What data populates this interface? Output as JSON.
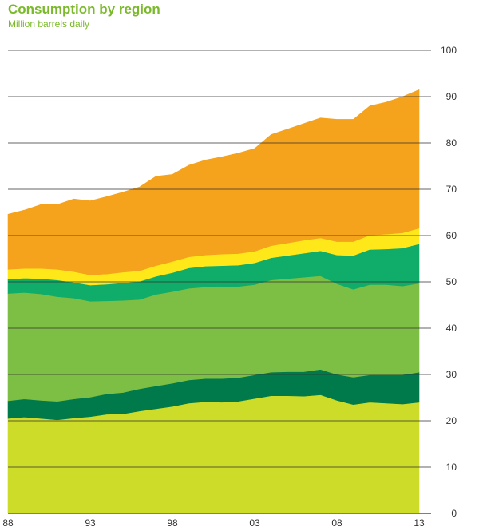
{
  "title": "Consumption by region",
  "subtitle": "Million barrels daily",
  "chart_data": {
    "type": "area",
    "stacked": true,
    "x": [
      1988,
      1989,
      1990,
      1991,
      1992,
      1993,
      1994,
      1995,
      1996,
      1997,
      1998,
      1999,
      2000,
      2001,
      2002,
      2003,
      2004,
      2005,
      2006,
      2007,
      2008,
      2009,
      2010,
      2011,
      2012,
      2013
    ],
    "xtick_labels": [
      "88",
      "93",
      "98",
      "03",
      "08",
      "13"
    ],
    "xtick_years": [
      1988,
      1993,
      1998,
      2003,
      2008,
      2013
    ],
    "ytick_labels": [
      "0",
      "10",
      "20",
      "30",
      "40",
      "50",
      "60",
      "70",
      "80",
      "90",
      "100"
    ],
    "ylim": [
      0,
      100
    ],
    "grid": "horizontal",
    "legend": "none",
    "series": [
      {
        "color": "#cddc28",
        "values": [
          20.5,
          20.8,
          20.5,
          20.2,
          20.6,
          20.9,
          21.4,
          21.5,
          22.1,
          22.6,
          23.1,
          23.8,
          24.1,
          24.0,
          24.2,
          24.8,
          25.4,
          25.4,
          25.3,
          25.6,
          24.4,
          23.5,
          24.0,
          23.8,
          23.6,
          24.0
        ]
      },
      {
        "color": "#007a4b",
        "values": [
          3.8,
          3.9,
          3.9,
          4.0,
          4.1,
          4.2,
          4.4,
          4.6,
          4.8,
          4.9,
          5.0,
          5.0,
          5.0,
          5.1,
          5.1,
          5.1,
          5.1,
          5.2,
          5.3,
          5.5,
          5.6,
          5.9,
          5.9,
          6.1,
          6.3,
          6.5
        ]
      },
      {
        "color": "#7dbf44",
        "values": [
          23.2,
          23.0,
          23.0,
          22.6,
          21.8,
          20.7,
          20.1,
          19.9,
          19.3,
          19.8,
          19.8,
          19.8,
          19.8,
          19.9,
          19.7,
          19.5,
          19.9,
          20.1,
          20.4,
          20.2,
          19.6,
          19.0,
          19.5,
          19.5,
          19.2,
          19.2
        ]
      },
      {
        "color": "#0fad69",
        "values": [
          3.1,
          3.1,
          3.3,
          3.6,
          3.4,
          3.5,
          3.6,
          3.8,
          3.9,
          3.9,
          4.1,
          4.4,
          4.5,
          4.5,
          4.6,
          4.7,
          4.8,
          5.0,
          5.2,
          5.4,
          6.2,
          7.3,
          7.6,
          7.7,
          8.2,
          8.5
        ]
      },
      {
        "color": "#ffe81a",
        "values": [
          2.1,
          2.1,
          2.2,
          2.3,
          2.3,
          2.2,
          2.2,
          2.3,
          2.3,
          2.3,
          2.4,
          2.4,
          2.4,
          2.5,
          2.5,
          2.5,
          2.6,
          2.7,
          2.8,
          2.8,
          2.9,
          3.0,
          3.1,
          3.2,
          3.3,
          3.4
        ]
      },
      {
        "color": "#f5a21c",
        "values": [
          11.9,
          12.6,
          13.8,
          14.0,
          15.7,
          16.0,
          16.7,
          17.3,
          18.1,
          19.3,
          18.8,
          19.8,
          20.5,
          21.0,
          21.7,
          22.2,
          24.0,
          24.6,
          25.2,
          25.9,
          26.4,
          26.4,
          27.9,
          28.5,
          29.4,
          29.9
        ]
      }
    ]
  }
}
